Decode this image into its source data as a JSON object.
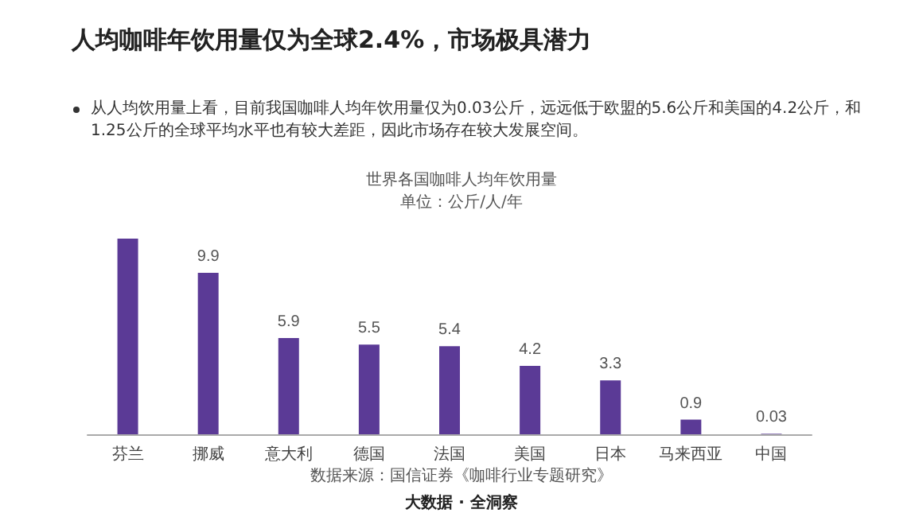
{
  "chart_data": {
    "type": "bar",
    "title": "人均咖啡年饮用量仅为全球2.4%，市场极具潜力",
    "subtitle": "从人均饮用量上看，目前我国咖啡人均年饮用量仅为0.03公斤，远远低于欧盟的5.6公斤和美国的4.2公斤，和1.25公斤的全球平均水平也有较大差距，因此市场存在较大发展空间。",
    "annotations": [
      "世界各国咖啡人均年饮用量",
      "单位：公斤/人/年",
      "数据来源：国信证券《咖啡行业专题研究》",
      "大数据 · 全洞察"
    ],
    "categories": [
      "芬兰",
      "挪威",
      "意大利",
      "德国",
      "法国",
      "美国",
      "日本",
      "马来西亚",
      "中国"
    ],
    "values": [
      12,
      9.9,
      5.9,
      5.5,
      5.4,
      4.2,
      3.3,
      0.9,
      0.03
    ],
    "value_labels": [
      null,
      "9.9",
      "5.9",
      "5.5",
      "5.4",
      "4.2",
      "3.3",
      "0.9",
      "0.03"
    ],
    "color": "#5b3a96"
  }
}
